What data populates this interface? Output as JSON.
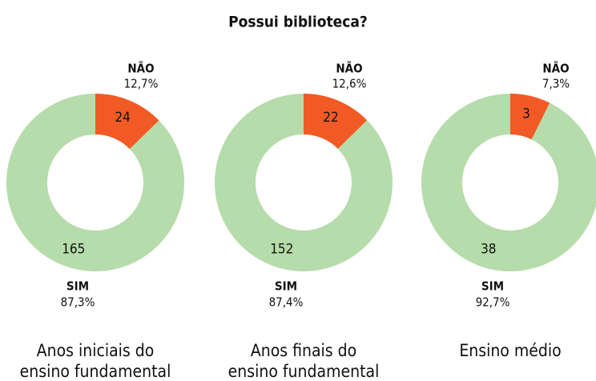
{
  "title": "Possui biblioteca?",
  "chart_data": [
    {
      "type": "donut",
      "title": "Anos iniciais do\nensino fundamental",
      "categories": [
        "NÃO",
        "SIM"
      ],
      "values": [
        24,
        165
      ],
      "percent_labels": [
        "12,7%",
        "87,3%"
      ],
      "colors": [
        "#f15a24",
        "#b5dcaa"
      ]
    },
    {
      "type": "donut",
      "title": "Anos finais do\nensino fundamental",
      "categories": [
        "NÃO",
        "SIM"
      ],
      "values": [
        22,
        152
      ],
      "percent_labels": [
        "12,6%",
        "87,4%"
      ],
      "colors": [
        "#f15a24",
        "#b5dcaa"
      ]
    },
    {
      "type": "donut",
      "title": "Ensino médio",
      "categories": [
        "NÃO",
        "SIM"
      ],
      "values": [
        3,
        38
      ],
      "percent_labels": [
        "7,3%",
        "92,7%"
      ],
      "colors": [
        "#f15a24",
        "#b5dcaa"
      ]
    }
  ]
}
